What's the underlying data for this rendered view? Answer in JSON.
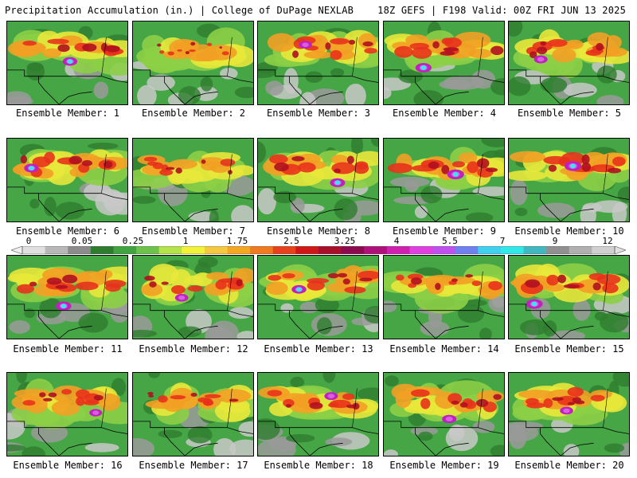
{
  "header": {
    "left_title": "Precipitation Accumulation (in.) | College of DuPage NEXLAB",
    "right_title": "18Z GEFS | F198 Valid: 00Z FRI JUN 13 2025"
  },
  "members": [
    {
      "label": "Ensemble Member: 1",
      "intensity": 0.78
    },
    {
      "label": "Ensemble Member: 2",
      "intensity": 0.35
    },
    {
      "label": "Ensemble Member: 3",
      "intensity": 0.7
    },
    {
      "label": "Ensemble Member: 4",
      "intensity": 0.85
    },
    {
      "label": "Ensemble Member: 5",
      "intensity": 0.72
    },
    {
      "label": "Ensemble Member: 6",
      "intensity": 0.78
    },
    {
      "label": "Ensemble Member: 7",
      "intensity": 0.55
    },
    {
      "label": "Ensemble Member: 8",
      "intensity": 0.8
    },
    {
      "label": "Ensemble Member: 9",
      "intensity": 0.9
    },
    {
      "label": "Ensemble Member: 10",
      "intensity": 0.9
    },
    {
      "label": "Ensemble Member: 11",
      "intensity": 0.82
    },
    {
      "label": "Ensemble Member: 12",
      "intensity": 0.7
    },
    {
      "label": "Ensemble Member: 13",
      "intensity": 0.78
    },
    {
      "label": "Ensemble Member: 14",
      "intensity": 0.65
    },
    {
      "label": "Ensemble Member: 15",
      "intensity": 0.88
    },
    {
      "label": "Ensemble Member: 16",
      "intensity": 0.68
    },
    {
      "label": "Ensemble Member: 17",
      "intensity": 0.6
    },
    {
      "label": "Ensemble Member: 18",
      "intensity": 0.72
    },
    {
      "label": "Ensemble Member: 19",
      "intensity": 0.76
    },
    {
      "label": "Ensemble Member: 20",
      "intensity": 0.7
    }
  ],
  "colorbar": {
    "tick_labels": [
      "0",
      "0.05",
      "0.25",
      "1",
      "1.75",
      "2.5",
      "3.25",
      "4",
      "5.5",
      "7",
      "9",
      "12"
    ],
    "colors": [
      "#e0e0e0",
      "#b8b8b8",
      "#8c8c8c",
      "#2e7d2e",
      "#3fa33f",
      "#6cc24a",
      "#b5e34a",
      "#f2f23a",
      "#f5c842",
      "#f5a623",
      "#f07a1f",
      "#e8421c",
      "#d01818",
      "#a8102a",
      "#8c0a50",
      "#b0107a",
      "#d020b0",
      "#e040e0",
      "#c050f0",
      "#7080f0",
      "#40d0f0",
      "#30e8e8",
      "#40b8c0",
      "#909090",
      "#b0b0b0",
      "#d0d0d0"
    ]
  },
  "palette": {
    "gray": "#9a9a9a",
    "lightgray": "#c8c8c8",
    "darkgreen": "#2e7d2e",
    "green": "#46a646",
    "lightgreen": "#8ccf46",
    "yellow": "#e8e83a",
    "orange": "#f2a024",
    "red": "#e8321c",
    "darkred": "#b01020",
    "magenta": "#c020c0",
    "violet": "#d860e0",
    "cyan": "#40e0f0"
  }
}
